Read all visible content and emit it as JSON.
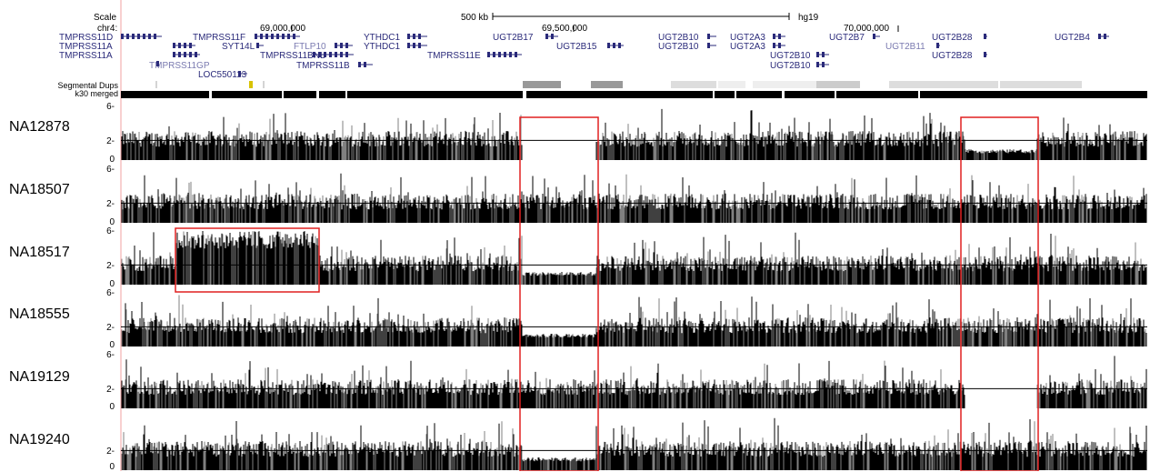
{
  "header": {
    "scale_label": "Scale",
    "chrom_label": "chr4:",
    "scalebar_label": "500 kb",
    "assembly": "hg19",
    "positions": [
      "69,000,000",
      "69,500,000",
      "70,000,000"
    ]
  },
  "tracks": {
    "segdups_label": "Segmental Dups",
    "k30_label": "k30 merged"
  },
  "genes": [
    {
      "name": "TMPRSS11D",
      "color": "#2a2a7a"
    },
    {
      "name": "TMPRSS11A",
      "color": "#2a2a7a"
    },
    {
      "name": "TMPRSS11A",
      "color": "#2a2a7a"
    },
    {
      "name": "TMPRSS11F",
      "color": "#2a2a7a"
    },
    {
      "name": "SYT14L",
      "color": "#2a2a7a"
    },
    {
      "name": "TMPRSS11GP",
      "color": "#7a7ab0"
    },
    {
      "name": "LOC550113",
      "color": "#2a2a7a"
    },
    {
      "name": "FTLP10",
      "color": "#7a7ab0"
    },
    {
      "name": "TMPRSS11BNL",
      "color": "#2a2a7a"
    },
    {
      "name": "TMPRSS11B",
      "color": "#2a2a7a"
    },
    {
      "name": "YTHDC1",
      "color": "#2a2a7a"
    },
    {
      "name": "YTHDC1",
      "color": "#2a2a7a"
    },
    {
      "name": "TMPRSS11E",
      "color": "#2a2a7a"
    },
    {
      "name": "UGT2B17",
      "color": "#2a2a7a"
    },
    {
      "name": "UGT2B15",
      "color": "#2a2a7a"
    },
    {
      "name": "UGT2B10",
      "color": "#2a2a7a"
    },
    {
      "name": "UGT2B10",
      "color": "#2a2a7a"
    },
    {
      "name": "UGT2A3",
      "color": "#2a2a7a"
    },
    {
      "name": "UGT2A3",
      "color": "#2a2a7a"
    },
    {
      "name": "UGT2B10",
      "color": "#2a2a7a"
    },
    {
      "name": "UGT2B10",
      "color": "#2a2a7a"
    },
    {
      "name": "UGT2B7",
      "color": "#2a2a7a"
    },
    {
      "name": "UGT2B11",
      "color": "#7a7ab0"
    },
    {
      "name": "UGT2B28",
      "color": "#2a2a7a"
    },
    {
      "name": "UGT2B28",
      "color": "#2a2a7a"
    },
    {
      "name": "UGT2B4",
      "color": "#2a2a7a"
    }
  ],
  "samples": [
    {
      "name": "NA12878",
      "ticks": [
        "6-",
        "2-",
        "0"
      ]
    },
    {
      "name": "NA18507",
      "ticks": [
        "6-",
        "2-",
        "0"
      ]
    },
    {
      "name": "NA18517",
      "ticks": [
        "6-",
        "2-",
        "0"
      ]
    },
    {
      "name": "NA18555",
      "ticks": [
        "6-",
        "2-",
        "0"
      ]
    },
    {
      "name": "NA19129",
      "ticks": [
        "6-",
        "2-",
        "0"
      ]
    },
    {
      "name": "NA19240",
      "ticks": [
        "2-",
        "0"
      ]
    }
  ],
  "colors": {
    "highlight": "#e02020",
    "gene_dark": "#2a2a7a",
    "gene_light": "#7a7ab0",
    "signal": "#000000",
    "signal_gray": "#808080",
    "axis_line": "#f0a0a0"
  }
}
